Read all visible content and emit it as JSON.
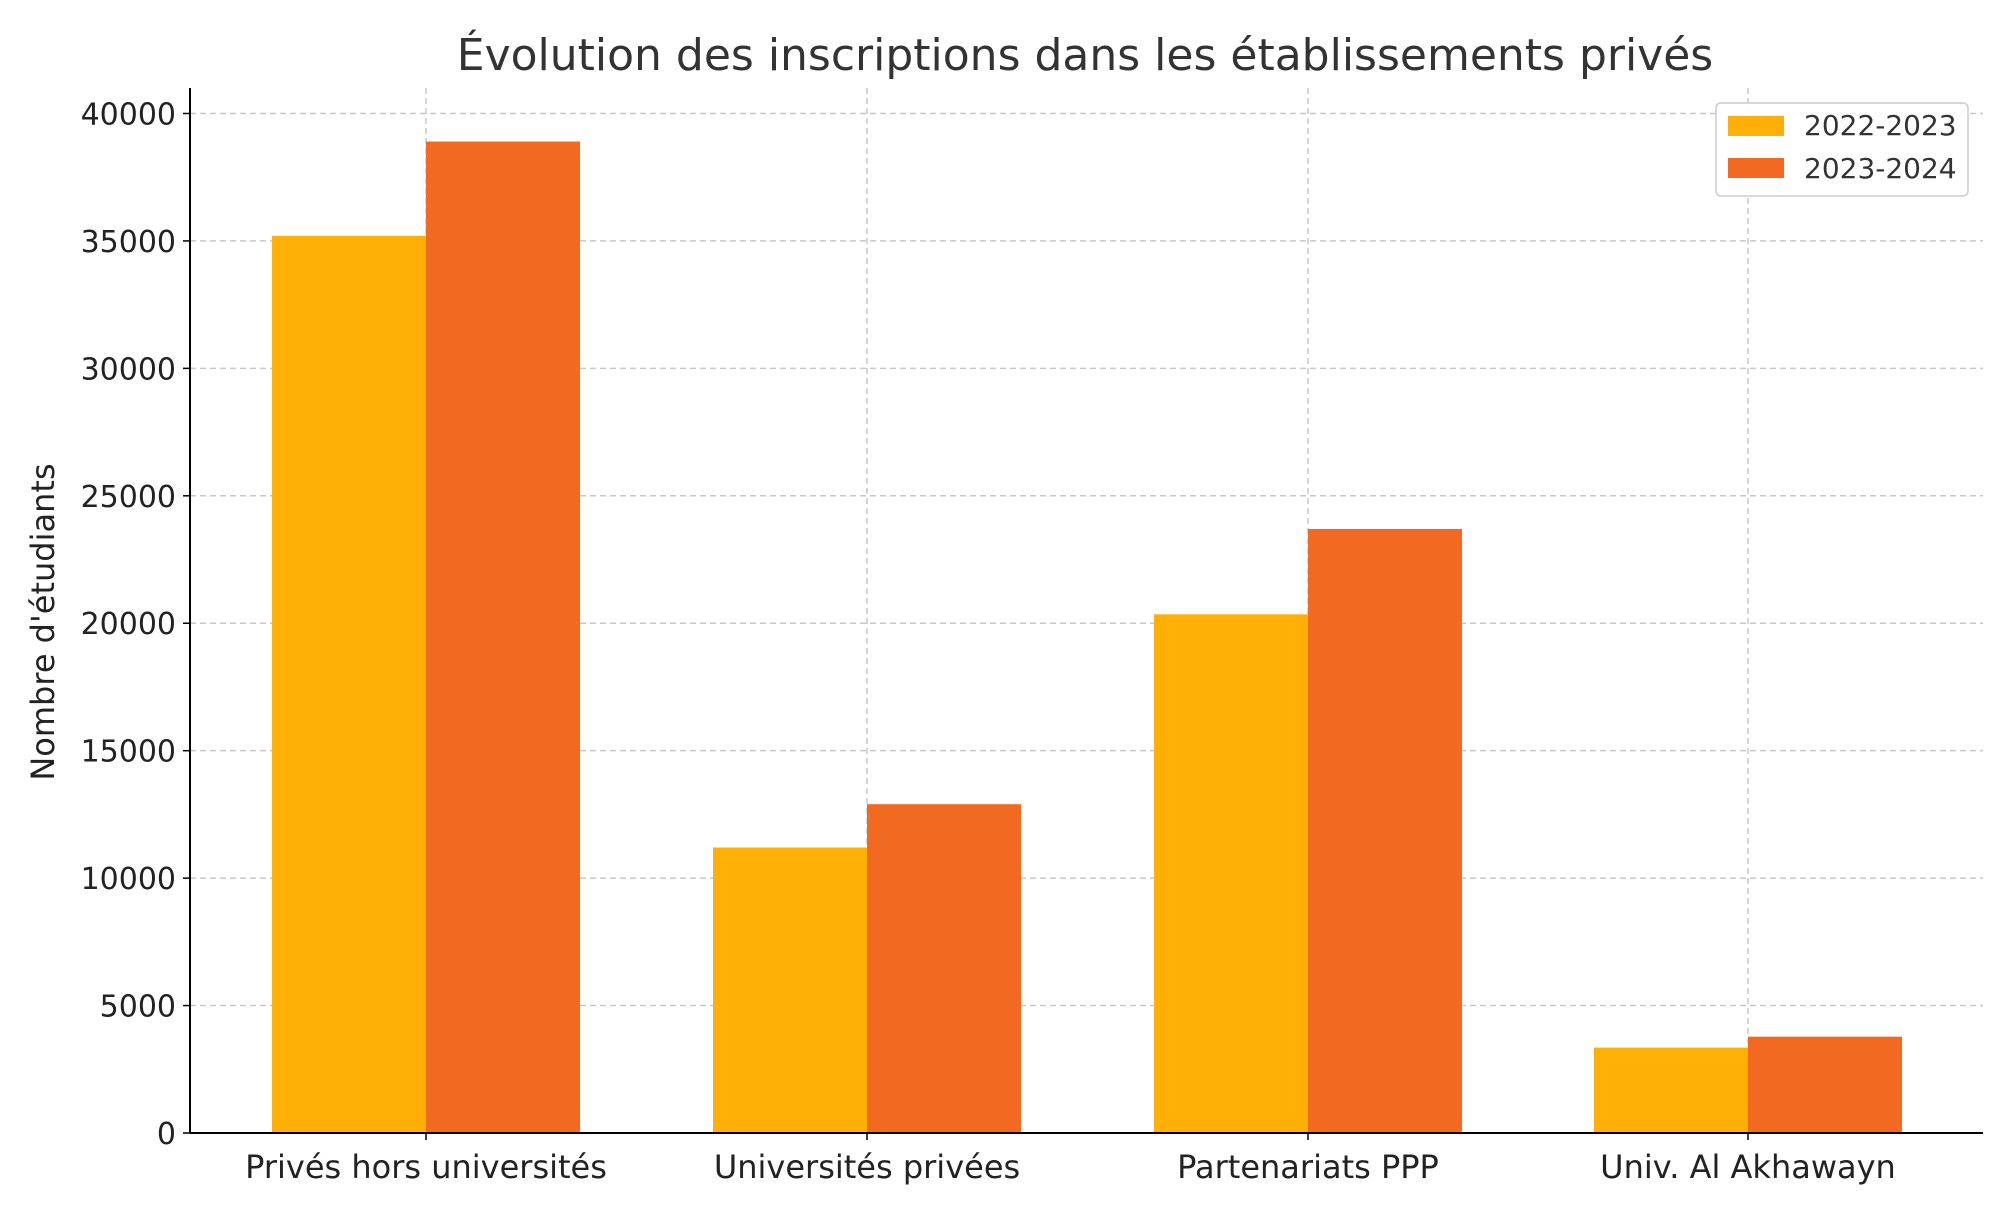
{
  "chart_data": {
    "type": "bar",
    "title": "Évolution des inscriptions dans les établissements privés",
    "xlabel": "",
    "ylabel": "Nombre d'étudiants",
    "categories": [
      "Privés hors universités",
      "Universités privées",
      "Partenariats PPP",
      "Univ. Al Akhawayn"
    ],
    "series": [
      {
        "name": "2022-2023",
        "color": "#FFAF05",
        "values": [
          35200,
          11200,
          20350,
          3350
        ]
      },
      {
        "name": "2023-2024",
        "color": "#F26A21",
        "values": [
          38900,
          12900,
          23700,
          3780
        ]
      }
    ],
    "ylim": [
      0,
      41000
    ],
    "yticks": [
      0,
      5000,
      10000,
      15000,
      20000,
      25000,
      30000,
      35000,
      40000
    ],
    "grid": true,
    "legend_position": "top-right"
  }
}
